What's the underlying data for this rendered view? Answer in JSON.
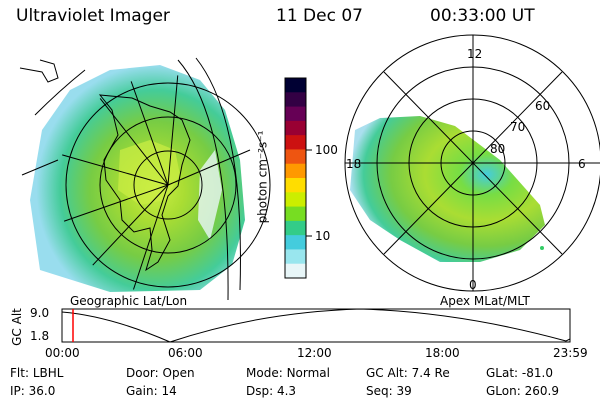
{
  "header": {
    "instrument": "Ultraviolet Imager",
    "date": "11 Dec 07",
    "time": "00:33:00 UT"
  },
  "left_panel": {
    "caption": "Geographic Lat/Lon"
  },
  "right_panel": {
    "caption": "Apex MLat/MLT",
    "mlt_labels": {
      "top": "12",
      "right": "6",
      "bottom": "0",
      "left": "18"
    },
    "lat_labels": [
      "60",
      "70",
      "80"
    ]
  },
  "colorbar": {
    "unit_label": "photon cm⁻²s⁻¹",
    "ticks": [
      "100",
      "10"
    ],
    "colors": [
      "#000033",
      "#330044",
      "#660055",
      "#990033",
      "#cc1111",
      "#ee5511",
      "#ff9900",
      "#ffdd00",
      "#ccee00",
      "#77dd22",
      "#33cc88",
      "#44ccdd",
      "#99e6ee",
      "#e8f6f8"
    ]
  },
  "timeline": {
    "ylabel": "GC Alt",
    "yticks": [
      "9.0",
      "1.8"
    ],
    "xticks": [
      "00:00",
      "06:00",
      "12:00",
      "18:00",
      "23:59"
    ],
    "marker_time": "00:33",
    "marker_color": "#ff0000"
  },
  "info": {
    "row1": [
      {
        "label": "Flt:",
        "value": "LBHL"
      },
      {
        "label": "Door:",
        "value": "Open"
      },
      {
        "label": "Mode:",
        "value": "Normal"
      },
      {
        "label": "GC Alt:",
        "value": "7.4 Re"
      },
      {
        "label": "GLat:",
        "value": "-81.0"
      }
    ],
    "row2": [
      {
        "label": "IP:",
        "value": "36.0"
      },
      {
        "label": "Gain:",
        "value": "14"
      },
      {
        "label": "Dsp:",
        "value": "4.3"
      },
      {
        "label": "Seq:",
        "value": "39"
      },
      {
        "label": "GLon:",
        "value": "260.9"
      }
    ]
  }
}
